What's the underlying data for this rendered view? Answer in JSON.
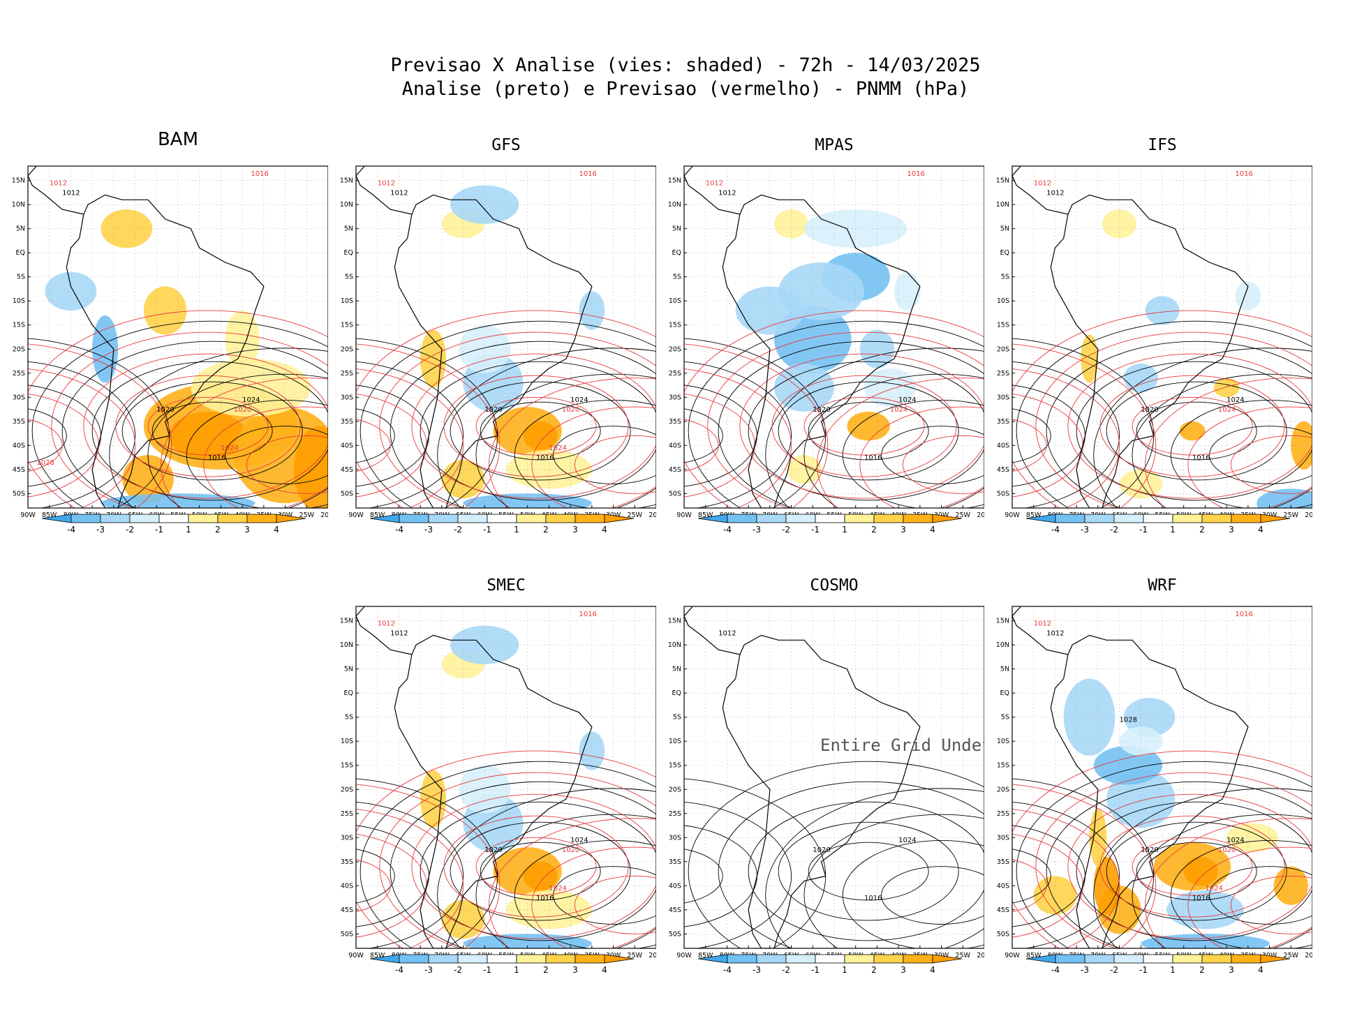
{
  "header": {
    "line1": "Previsao X Analise (vies: shaded) - 72h - 14/03/2025",
    "line2": "Analise (preto) e Previsao (vermelho) - PNMM (hPa)"
  },
  "axes": {
    "lat_labels": [
      "15N",
      "10N",
      "5N",
      "EQ",
      "5S",
      "10S",
      "15S",
      "20S",
      "25S",
      "30S",
      "35S",
      "40S",
      "45S",
      "50S"
    ],
    "lon_labels": [
      "90W",
      "85W",
      "80W",
      "75W",
      "70W",
      "65W",
      "60W",
      "55W",
      "50W",
      "45W",
      "40W",
      "35W",
      "30W",
      "25W",
      "20W"
    ]
  },
  "colorbar": {
    "labels": [
      "-4",
      "-3",
      "-2",
      "-1",
      "1",
      "2",
      "3",
      "4"
    ],
    "colors": [
      "#3fa9ee",
      "#74c1f3",
      "#a7d8f7",
      "#d7effb",
      "#ffffff",
      "#fff29a",
      "#ffd34a",
      "#ffb119",
      "#ff9f00"
    ]
  },
  "colors": {
    "analysis_line": "#000000",
    "forecast_line": "#e8383b",
    "coast": "#000000"
  },
  "chart_data": [
    {
      "type": "heatmap",
      "title": "BAM",
      "bias": "positive-strong",
      "undefined": false,
      "contours_hpa": {
        "analysis": [
          "1012",
          "1016",
          "1020",
          "1024"
        ],
        "forecast": [
          "1012",
          "1016",
          "1020",
          "1024",
          "1028"
        ]
      }
    },
    {
      "type": "heatmap",
      "title": "GFS",
      "bias": "mixed",
      "undefined": false,
      "contours_hpa": {
        "analysis": [
          "1012",
          "1016",
          "1020",
          "1024"
        ],
        "forecast": [
          "1012",
          "1016",
          "1020",
          "1024"
        ]
      }
    },
    {
      "type": "heatmap",
      "title": "MPAS",
      "bias": "negative",
      "undefined": false,
      "contours_hpa": {
        "analysis": [
          "1012",
          "1016",
          "1020",
          "1024"
        ],
        "forecast": [
          "1012",
          "1016",
          "1024"
        ]
      }
    },
    {
      "type": "heatmap",
      "title": "IFS",
      "bias": "weak",
      "undefined": false,
      "contours_hpa": {
        "analysis": [
          "1012",
          "1016",
          "1020",
          "1024"
        ],
        "forecast": [
          "1012",
          "1016",
          "1024"
        ]
      }
    },
    {
      "type": "heatmap",
      "title": "SMEC",
      "bias": "mixed",
      "undefined": false,
      "contours_hpa": {
        "analysis": [
          "1012",
          "1016",
          "1020",
          "1024"
        ],
        "forecast": [
          "1012",
          "1016",
          "1020",
          "1024"
        ]
      }
    },
    {
      "type": "heatmap",
      "title": "COSMO",
      "bias": "none",
      "undefined": true,
      "undefined_text": "Entire Grid Undefined",
      "contours_hpa": {
        "analysis": [
          "1012",
          "1016",
          "1020",
          "1024"
        ],
        "forecast": []
      }
    },
    {
      "type": "heatmap",
      "title": "WRF",
      "bias": "mixed-strong",
      "undefined": false,
      "contours_hpa": {
        "analysis": [
          "1012",
          "1016",
          "1020",
          "1024",
          "1028"
        ],
        "forecast": [
          "1012",
          "1016",
          "1020",
          "1024"
        ]
      }
    }
  ]
}
